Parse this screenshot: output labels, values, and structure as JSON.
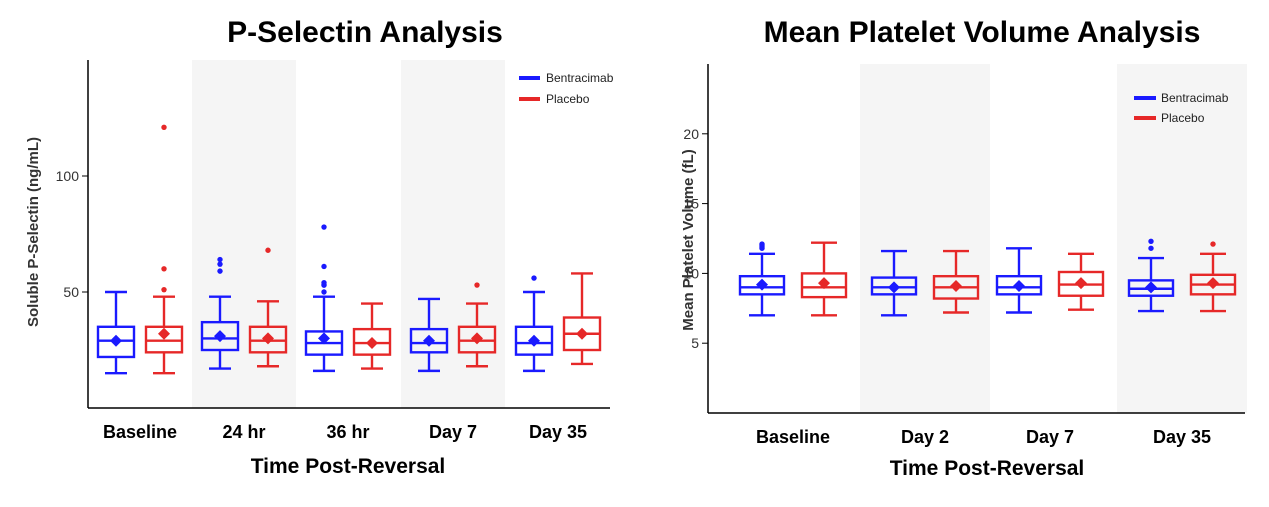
{
  "chart_data": [
    {
      "type": "box",
      "title": "P-Selectin Analysis",
      "xlabel": "Time Post-Reversal",
      "ylabel": "Soluble P-Selectin (ng/mL)",
      "ylim": [
        0,
        150
      ],
      "yticks": [
        50,
        100
      ],
      "categories": [
        "Baseline",
        "24 hr",
        "36 hr",
        "Day 7",
        "Day 35"
      ],
      "shaded_categories": [
        1,
        3
      ],
      "legend": {
        "position": "top-right",
        "entries": [
          "Bentracimab",
          "Placebo"
        ]
      },
      "colors": {
        "Bentracimab": "#1a1aff",
        "Placebo": "#e62828"
      },
      "series": [
        {
          "name": "Bentracimab",
          "boxes": [
            {
              "min": 15,
              "q1": 22,
              "median": 29,
              "q3": 35,
              "max": 50,
              "mean": 29,
              "outliers": []
            },
            {
              "min": 17,
              "q1": 25,
              "median": 30,
              "q3": 37,
              "max": 48,
              "mean": 31,
              "outliers": [
                59,
                62,
                64
              ]
            },
            {
              "min": 16,
              "q1": 23,
              "median": 28,
              "q3": 33,
              "max": 48,
              "mean": 30,
              "outliers": [
                50,
                53,
                53,
                54,
                61,
                78
              ]
            },
            {
              "min": 16,
              "q1": 24,
              "median": 28,
              "q3": 34,
              "max": 47,
              "mean": 29,
              "outliers": []
            },
            {
              "min": 16,
              "q1": 23,
              "median": 28,
              "q3": 35,
              "max": 50,
              "mean": 29,
              "outliers": [
                56
              ]
            }
          ]
        },
        {
          "name": "Placebo",
          "boxes": [
            {
              "min": 15,
              "q1": 24,
              "median": 29,
              "q3": 35,
              "max": 48,
              "mean": 32,
              "outliers": [
                51,
                60,
                121
              ]
            },
            {
              "min": 18,
              "q1": 24,
              "median": 29,
              "q3": 35,
              "max": 46,
              "mean": 30,
              "outliers": [
                68
              ]
            },
            {
              "min": 17,
              "q1": 23,
              "median": 28,
              "q3": 34,
              "max": 45,
              "mean": 28,
              "outliers": []
            },
            {
              "min": 18,
              "q1": 24,
              "median": 29,
              "q3": 35,
              "max": 45,
              "mean": 30,
              "outliers": [
                53
              ]
            },
            {
              "min": 19,
              "q1": 25,
              "median": 32,
              "q3": 39,
              "max": 58,
              "mean": 32,
              "outliers": []
            }
          ]
        }
      ]
    },
    {
      "type": "box",
      "title": "Mean Platelet Volume Analysis",
      "xlabel": "Time Post-Reversal",
      "ylabel": "Mean Platelet Volume (fL)",
      "ylim": [
        0,
        25
      ],
      "yticks": [
        5,
        10,
        15,
        20
      ],
      "categories": [
        "Baseline",
        "Day 2",
        "Day 7",
        "Day 35"
      ],
      "shaded_categories": [
        1,
        3
      ],
      "legend": {
        "position": "top-right",
        "entries": [
          "Bentracimab",
          "Placebo"
        ]
      },
      "colors": {
        "Bentracimab": "#1a1aff",
        "Placebo": "#e62828"
      },
      "series": [
        {
          "name": "Bentracimab",
          "boxes": [
            {
              "min": 7.0,
              "q1": 8.5,
              "median": 9.0,
              "q3": 9.8,
              "max": 11.4,
              "mean": 9.2,
              "outliers": [
                11.8,
                11.9,
                12.0,
                12.1
              ]
            },
            {
              "min": 7.0,
              "q1": 8.5,
              "median": 9.0,
              "q3": 9.7,
              "max": 11.6,
              "mean": 9.0,
              "outliers": []
            },
            {
              "min": 7.2,
              "q1": 8.5,
              "median": 9.0,
              "q3": 9.8,
              "max": 11.8,
              "mean": 9.1,
              "outliers": []
            },
            {
              "min": 7.3,
              "q1": 8.4,
              "median": 8.9,
              "q3": 9.5,
              "max": 11.1,
              "mean": 9.0,
              "outliers": [
                11.8,
                12.3
              ]
            }
          ]
        },
        {
          "name": "Placebo",
          "boxes": [
            {
              "min": 7.0,
              "q1": 8.3,
              "median": 9.0,
              "q3": 10.0,
              "max": 12.2,
              "mean": 9.3,
              "outliers": []
            },
            {
              "min": 7.2,
              "q1": 8.2,
              "median": 9.0,
              "q3": 9.8,
              "max": 11.6,
              "mean": 9.1,
              "outliers": []
            },
            {
              "min": 7.4,
              "q1": 8.4,
              "median": 9.2,
              "q3": 10.1,
              "max": 11.4,
              "mean": 9.3,
              "outliers": []
            },
            {
              "min": 7.3,
              "q1": 8.5,
              "median": 9.2,
              "q3": 9.9,
              "max": 11.4,
              "mean": 9.3,
              "outliers": [
                12.1
              ]
            }
          ]
        }
      ]
    }
  ]
}
